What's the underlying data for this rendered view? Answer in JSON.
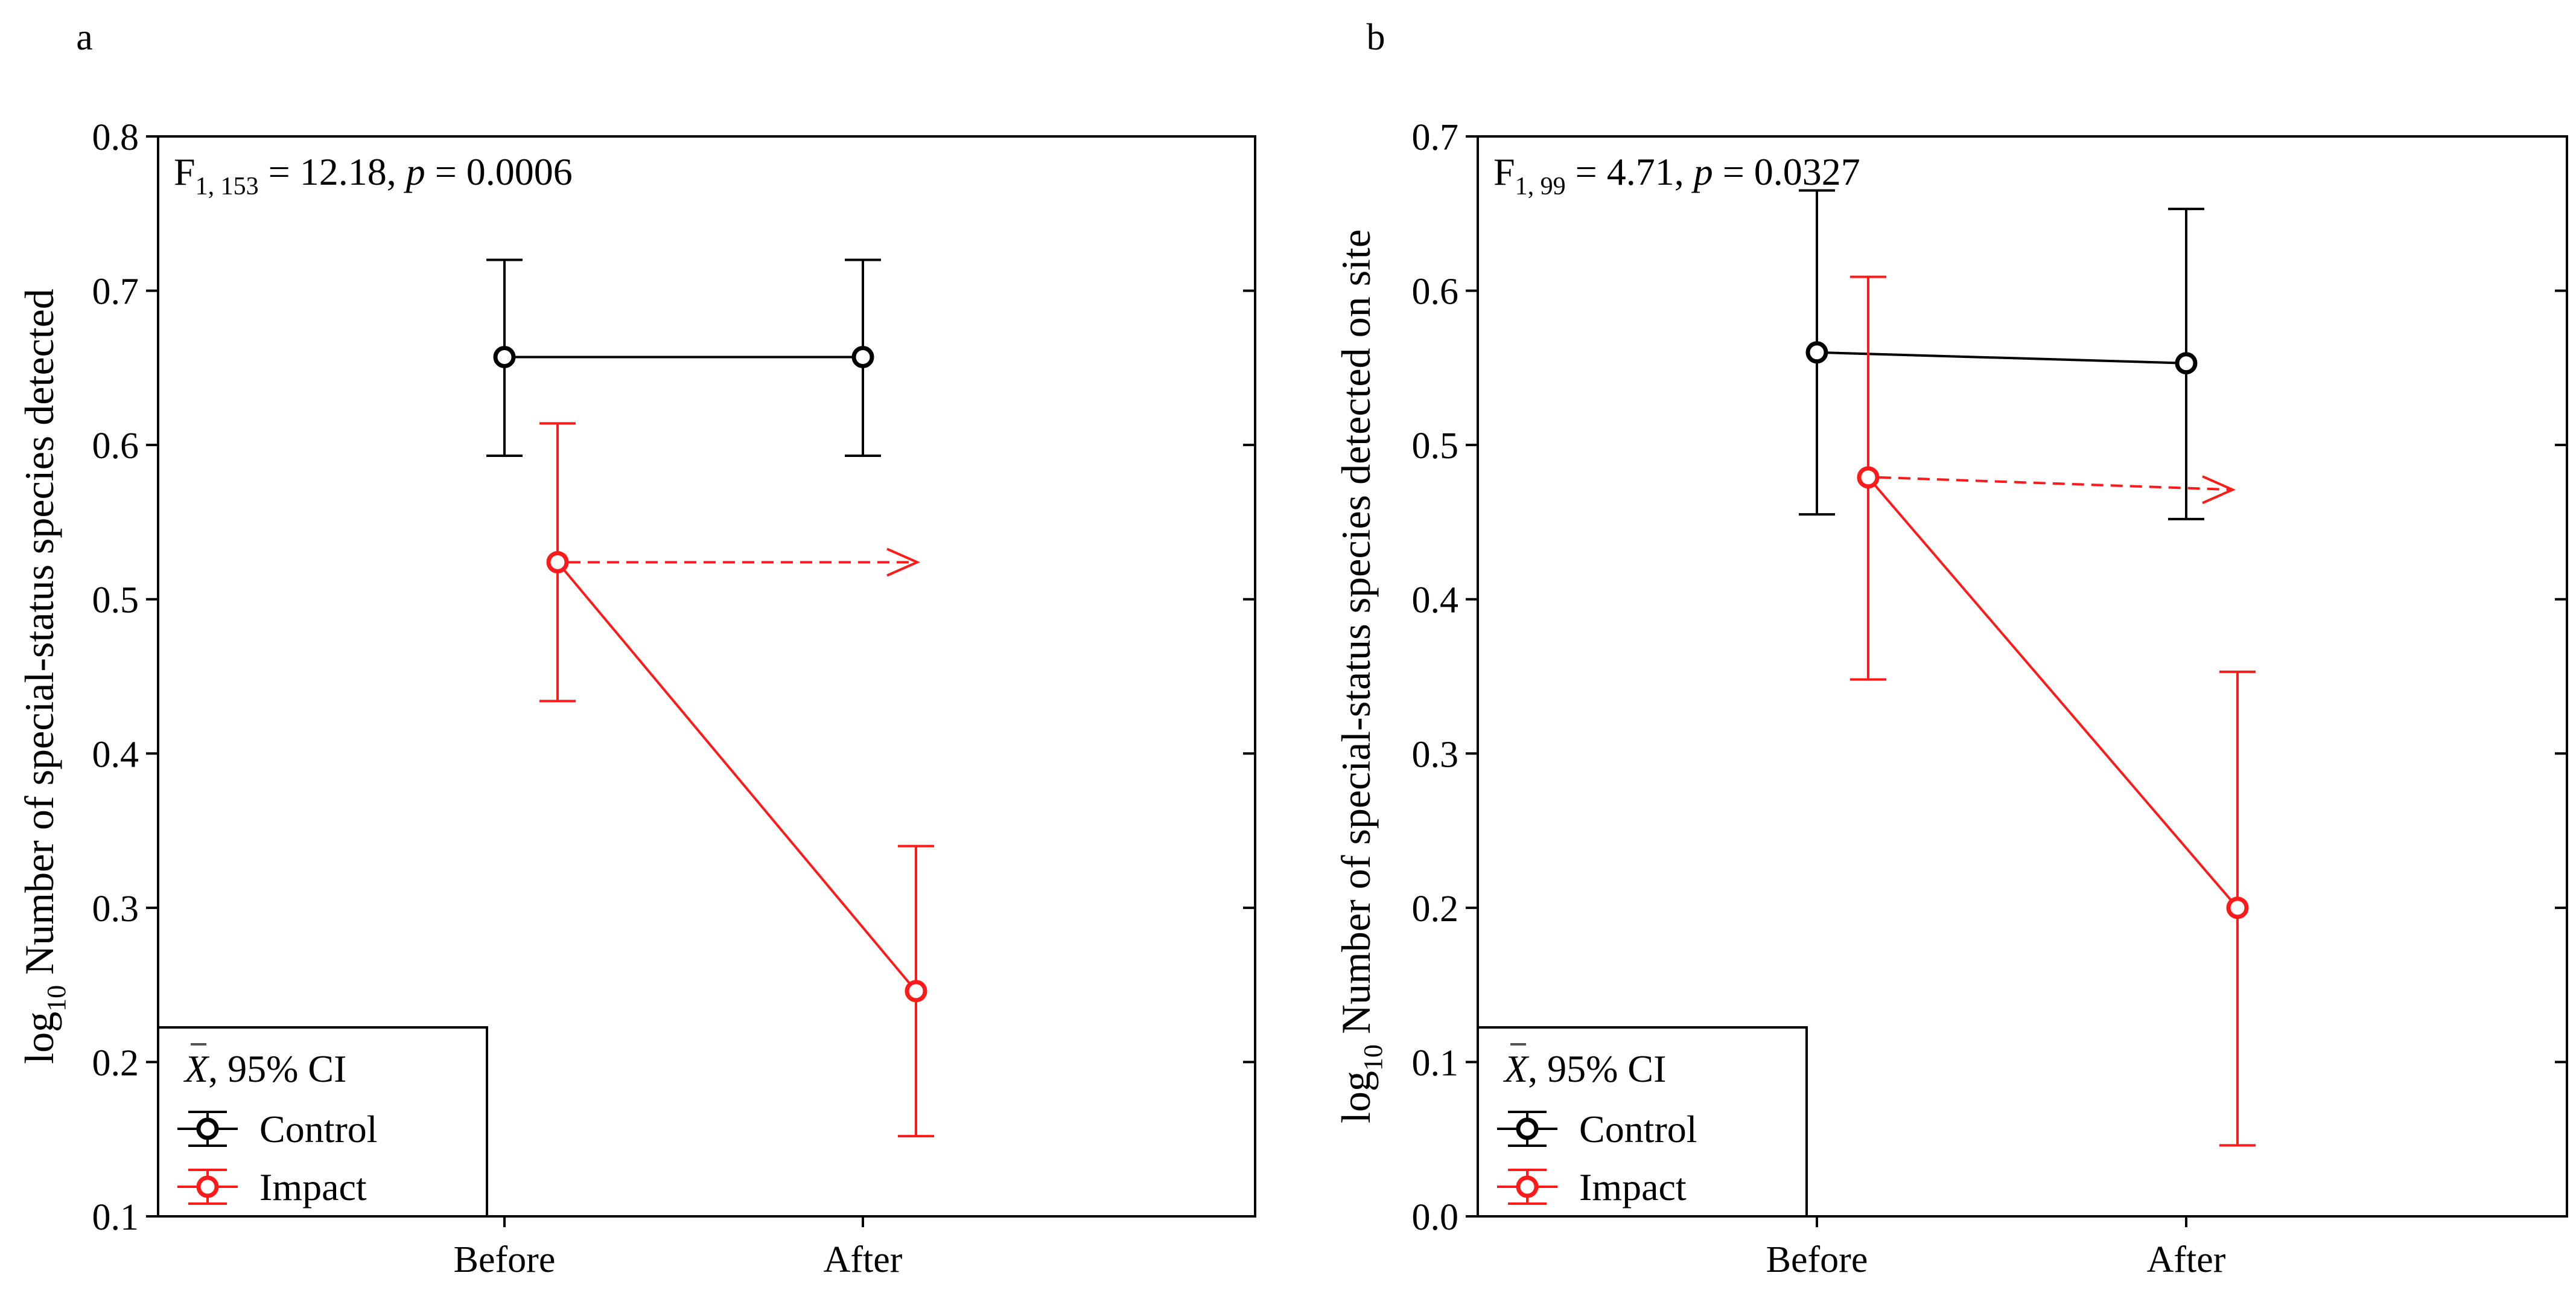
{
  "colors": {
    "control": "#000000",
    "impact": "#ff1a1a",
    "axis": "#000000",
    "background": "#ffffff"
  },
  "chart_data": [
    {
      "panel": "a",
      "type": "line",
      "x_categories": [
        "Before",
        "After"
      ],
      "ylim": [
        0.1,
        0.8
      ],
      "y_ticks": [
        0.1,
        0.2,
        0.3,
        0.4,
        0.5,
        0.6,
        0.7,
        0.8
      ],
      "y_tick_labels": [
        "0.1",
        "0.2",
        "0.3",
        "0.4",
        "0.5",
        "0.6",
        "0.7",
        "0.8"
      ],
      "ylabel_prefix": "log",
      "ylabel_sub": "10",
      "ylabel_main": " Number of special-status species detected",
      "stat": {
        "prefix": "F",
        "sub": "1, 153",
        "mid": " = 12.18, ",
        "p": "p",
        "rest": " = 0.0006"
      },
      "series": [
        {
          "name": "Control",
          "color": "#000000",
          "means": [
            0.657,
            0.657
          ],
          "ci_low": [
            0.593,
            0.593
          ],
          "ci_high": [
            0.72,
            0.72
          ]
        },
        {
          "name": "Impact",
          "color": "#ff1a1a",
          "means": [
            0.524,
            0.246
          ],
          "ci_low": [
            0.434,
            0.152
          ],
          "ci_high": [
            0.614,
            0.34
          ]
        }
      ],
      "projection": {
        "from": "Before",
        "value": 0.524,
        "to_value": 0.524
      },
      "legend": {
        "title_symbol": "X",
        "title_text": ", 95% CI",
        "entries": [
          "Control",
          "Impact"
        ],
        "position": "bottom-left"
      }
    },
    {
      "panel": "b",
      "type": "line",
      "x_categories": [
        "Before",
        "After"
      ],
      "ylim": [
        0.0,
        0.7
      ],
      "y_ticks": [
        0.0,
        0.1,
        0.2,
        0.3,
        0.4,
        0.5,
        0.6,
        0.7
      ],
      "y_tick_labels": [
        "0.0",
        "0.1",
        "0.2",
        "0.3",
        "0.4",
        "0.5",
        "0.6",
        "0.7"
      ],
      "ylabel_prefix": "log",
      "ylabel_sub": "10",
      "ylabel_main": " Number of special-status species detected on site",
      "stat": {
        "prefix": "F",
        "sub": "1, 99",
        "mid": " = 4.71, ",
        "p": "p",
        "rest": " = 0.0327"
      },
      "series": [
        {
          "name": "Control",
          "color": "#000000",
          "means": [
            0.56,
            0.553
          ],
          "ci_low": [
            0.455,
            0.452
          ],
          "ci_high": [
            0.665,
            0.653
          ]
        },
        {
          "name": "Impact",
          "color": "#ff1a1a",
          "means": [
            0.479,
            0.2
          ],
          "ci_low": [
            0.348,
            0.046
          ],
          "ci_high": [
            0.609,
            0.353
          ]
        }
      ],
      "projection": {
        "from": "Before",
        "value": 0.479,
        "to_value": 0.471
      },
      "legend": {
        "title_symbol": "X",
        "title_text": ", 95% CI",
        "entries": [
          "Control",
          "Impact"
        ],
        "position": "bottom-left"
      }
    }
  ]
}
